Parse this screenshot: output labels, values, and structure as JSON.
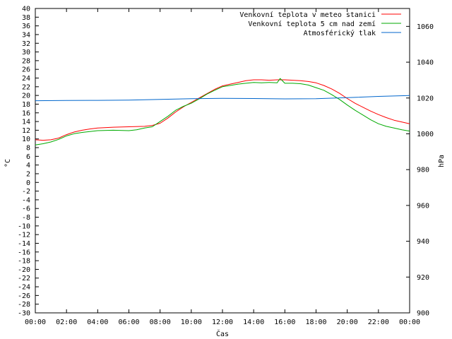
{
  "chart_data": {
    "type": "line",
    "xlabel": "Čas",
    "ylabel": "°C",
    "y2label": "hPa",
    "x_ticks": [
      "00:00",
      "02:00",
      "04:00",
      "06:00",
      "08:00",
      "10:00",
      "12:00",
      "14:00",
      "16:00",
      "18:00",
      "20:00",
      "22:00",
      "00:00"
    ],
    "x_range_hours": [
      0,
      24
    ],
    "ylim": [
      -30,
      40
    ],
    "y_tick_step": 2,
    "y2lim": [
      900,
      1070
    ],
    "y2_ticks": [
      900,
      920,
      940,
      960,
      980,
      1000,
      1020,
      1040,
      1060
    ],
    "grid": false,
    "legend_position": "top-right",
    "series": [
      {
        "name": "Venkovní teplota v meteo stanici",
        "color": "#ff0000",
        "axis": "left",
        "x": [
          0,
          0.5,
          1,
          1.5,
          2,
          2.5,
          3,
          3.5,
          4,
          5,
          6,
          7,
          7.5,
          8,
          8.5,
          9,
          9.5,
          10,
          10.5,
          11,
          11.5,
          12,
          12.5,
          13,
          13.5,
          14,
          14.5,
          15,
          15.5,
          16,
          16.5,
          17,
          17.5,
          18,
          18.5,
          19,
          19.5,
          20,
          20.5,
          21,
          21.5,
          22,
          22.5,
          23,
          23.5,
          24
        ],
        "values": [
          9.8,
          9.7,
          9.8,
          10.2,
          11,
          11.6,
          12,
          12.3,
          12.5,
          12.7,
          12.8,
          12.9,
          13.1,
          13.6,
          14.8,
          16.2,
          17.4,
          18.4,
          19.4,
          20.4,
          21.4,
          22.2,
          22.6,
          23,
          23.4,
          23.6,
          23.6,
          23.5,
          23.6,
          23.6,
          23.5,
          23.4,
          23.2,
          22.9,
          22.3,
          21.5,
          20.5,
          19.3,
          18.2,
          17.3,
          16.4,
          15.6,
          14.9,
          14.3,
          13.9,
          13.5
        ]
      },
      {
        "name": "Venkovní teplota 5 cm nad zemí",
        "color": "#00aa00",
        "axis": "left",
        "x": [
          0,
          0.5,
          1,
          1.5,
          2,
          2.5,
          3,
          3.5,
          4,
          5,
          6,
          6.5,
          7,
          7.5,
          8,
          8.5,
          9,
          9.5,
          10,
          10.5,
          11,
          11.5,
          12,
          12.5,
          13,
          13.5,
          14,
          14.5,
          15,
          15.5,
          15.7,
          16,
          16.5,
          17,
          17.5,
          18,
          18.5,
          19,
          19.5,
          20,
          20.5,
          21,
          21.5,
          22,
          22.5,
          23,
          23.5,
          24
        ],
        "values": [
          8.6,
          8.9,
          9.3,
          9.9,
          10.7,
          11.2,
          11.5,
          11.7,
          11.9,
          12,
          11.9,
          12.1,
          12.5,
          12.8,
          14,
          15.2,
          16.6,
          17.5,
          18.2,
          19.2,
          20.3,
          21.2,
          22,
          22.3,
          22.6,
          22.8,
          23,
          22.9,
          23,
          22.9,
          23.9,
          22.8,
          22.8,
          22.7,
          22.4,
          21.8,
          21.2,
          20.2,
          19.1,
          17.8,
          16.6,
          15.5,
          14.4,
          13.5,
          12.9,
          12.5,
          12.1,
          11.8
        ]
      },
      {
        "name": "Atmosférický tlak",
        "color": "#0066cc",
        "axis": "right",
        "x": [
          0,
          2,
          4,
          6,
          8,
          10,
          12,
          14,
          16,
          18,
          20,
          22,
          24
        ],
        "values": [
          1018.5,
          1018.6,
          1018.7,
          1018.8,
          1019.2,
          1019.6,
          1019.8,
          1019.7,
          1019.5,
          1019.6,
          1020.2,
          1020.9,
          1021.4
        ]
      }
    ]
  }
}
